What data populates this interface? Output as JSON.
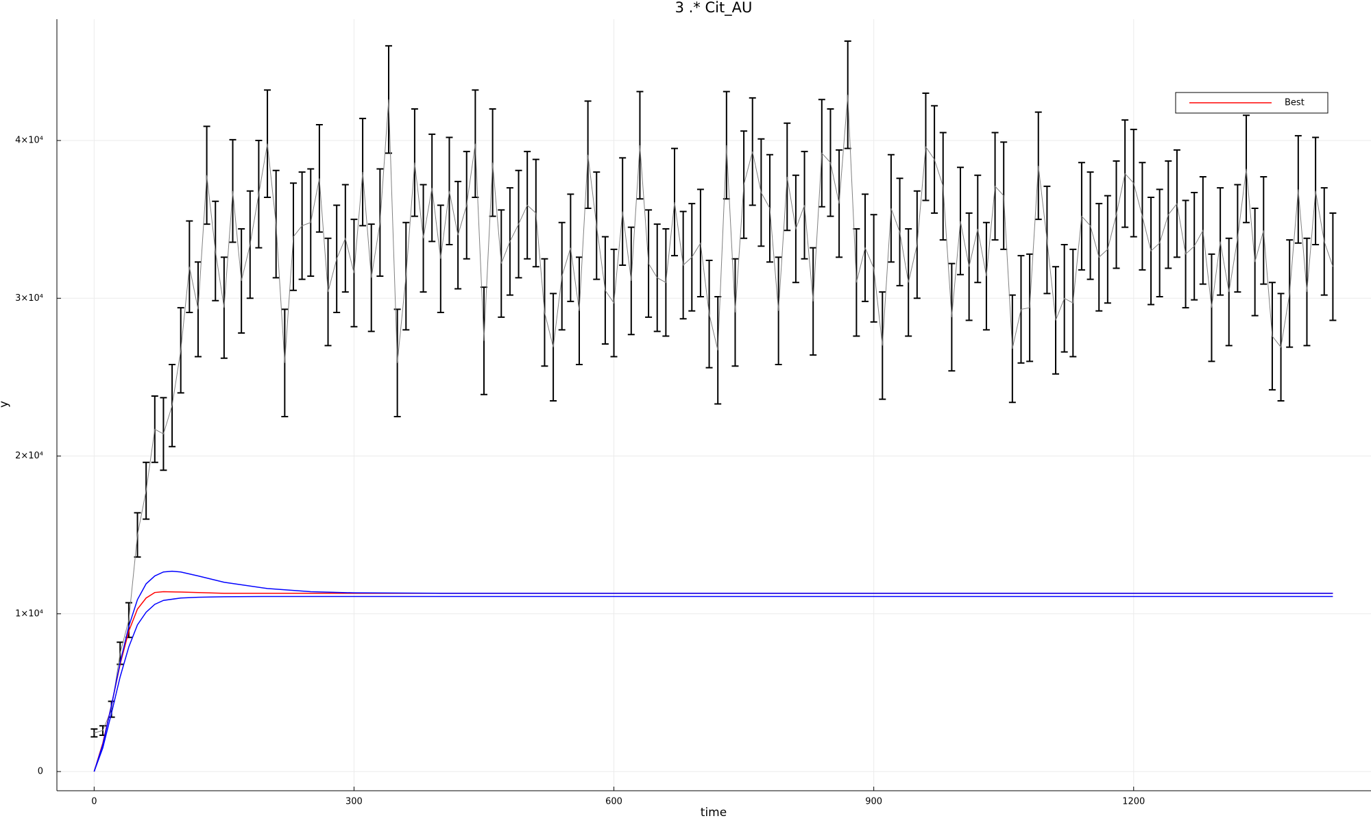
{
  "chart_data": {
    "type": "line",
    "title": "3  .*  Cit_AU",
    "x_label": "time",
    "y_label": "y",
    "xlim": [
      -43,
      1474
    ],
    "ylim": [
      -1216,
      47690
    ],
    "xticks": [
      0,
      300,
      600,
      900,
      1200
    ],
    "yticks": [
      0,
      {
        "value": 10000,
        "label": "1×10⁴"
      },
      {
        "value": 20000,
        "label": "2×10⁴"
      },
      {
        "value": 30000,
        "label": "3×10⁴"
      },
      {
        "value": 40000,
        "label": "4×10⁴"
      }
    ],
    "grid": true,
    "legend": "top-right",
    "series": [
      {
        "color": "#000000",
        "line_color": "#7f7f7f",
        "x": [
          0,
          10,
          20,
          30,
          40,
          50,
          60,
          70,
          80,
          90,
          100,
          110,
          120,
          130,
          140,
          150,
          160,
          170,
          180,
          190,
          200,
          210,
          220,
          230,
          240,
          250,
          260,
          270,
          280,
          290,
          300,
          310,
          320,
          330,
          340,
          350,
          360,
          370,
          380,
          390,
          400,
          410,
          420,
          430,
          440,
          450,
          460,
          470,
          480,
          490,
          500,
          510,
          520,
          530,
          540,
          550,
          560,
          570,
          580,
          590,
          600,
          610,
          620,
          630,
          640,
          650,
          660,
          670,
          680,
          690,
          700,
          710,
          720,
          730,
          740,
          750,
          760,
          770,
          780,
          790,
          800,
          810,
          820,
          830,
          840,
          850,
          860,
          870,
          880,
          890,
          900,
          910,
          920,
          930,
          940,
          950,
          960,
          970,
          980,
          990,
          1000,
          1010,
          1020,
          1030,
          1040,
          1050,
          1060,
          1070,
          1080,
          1090,
          1100,
          1110,
          1120,
          1130,
          1140,
          1150,
          1160,
          1170,
          1180,
          1190,
          1200,
          1210,
          1220,
          1230,
          1240,
          1250,
          1260,
          1270,
          1280,
          1290,
          1300,
          1310,
          1320,
          1330,
          1340,
          1350,
          1360,
          1370,
          1380,
          1390,
          1400,
          1410,
          1420,
          1430
        ],
        "values": [
          2450,
          2600,
          3950,
          7500,
          9600,
          15000,
          17800,
          21700,
          21400,
          23200,
          26700,
          32000,
          29300,
          37800,
          33000,
          29400,
          36800,
          31100,
          33400,
          36600,
          39800,
          34700,
          25900,
          33900,
          34600,
          34800,
          37600,
          30400,
          32500,
          33800,
          31600,
          38000,
          31300,
          34800,
          42600,
          25900,
          31400,
          38600,
          33800,
          37000,
          32500,
          36800,
          34000,
          35900,
          39800,
          27300,
          38600,
          32200,
          33600,
          34700,
          35900,
          35400,
          29100,
          26900,
          31400,
          33200,
          29200,
          39100,
          34600,
          30500,
          29700,
          35500,
          31100,
          39700,
          32200,
          31300,
          31000,
          36100,
          32100,
          32600,
          33500,
          29000,
          26700,
          39700,
          29100,
          37200,
          39300,
          36700,
          35700,
          29200,
          37700,
          34400,
          35900,
          29800,
          39200,
          38600,
          36000,
          42900,
          31000,
          33200,
          31900,
          27000,
          35700,
          34200,
          31000,
          33400,
          39600,
          38800,
          37100,
          28800,
          34900,
          32000,
          34400,
          31400,
          37100,
          36500,
          26800,
          29300,
          29400,
          38400,
          33700,
          28600,
          30000,
          29700,
          35200,
          34600,
          32600,
          33100,
          35300,
          37900,
          37300,
          35200,
          33000,
          33500,
          35300,
          36000,
          32800,
          33300,
          34300,
          29400,
          33600,
          30400,
          33800,
          38200,
          32300,
          34300,
          27600,
          26900,
          30300,
          36900,
          30400,
          36800,
          33600,
          32000
        ],
        "errors": [
          250,
          300,
          500,
          700,
          1100,
          1400,
          1800,
          2100,
          2300,
          2600,
          2700,
          2900,
          3000,
          3100,
          3150,
          3200,
          3250,
          3300,
          3400,
          3400,
          3400,
          3400,
          3400,
          3400,
          3400,
          3400,
          3400,
          3400,
          3400,
          3400,
          3400,
          3400,
          3400,
          3400,
          3400,
          3400,
          3400,
          3400,
          3400,
          3400,
          3400,
          3400,
          3400,
          3400,
          3400,
          3400,
          3400,
          3400,
          3400,
          3400,
          3400,
          3400,
          3400,
          3400,
          3400,
          3400,
          3400,
          3400,
          3400,
          3400,
          3400,
          3400,
          3400,
          3400,
          3400,
          3400,
          3400,
          3400,
          3400,
          3400,
          3400,
          3400,
          3400,
          3400,
          3400,
          3400,
          3400,
          3400,
          3400,
          3400,
          3400,
          3400,
          3400,
          3400,
          3400,
          3400,
          3400,
          3400,
          3400,
          3400,
          3400,
          3400,
          3400,
          3400,
          3400,
          3400,
          3400,
          3400,
          3400,
          3400,
          3400,
          3400,
          3400,
          3400,
          3400,
          3400,
          3400,
          3400,
          3400,
          3400,
          3400,
          3400,
          3400,
          3400,
          3400,
          3400,
          3400,
          3400,
          3400,
          3400,
          3400,
          3400,
          3400,
          3400,
          3400,
          3400,
          3400,
          3400,
          3400,
          3400,
          3400,
          3400,
          3400,
          3400,
          3400,
          3400,
          3400,
          3400,
          3400,
          3400,
          3400,
          3400,
          3400,
          3400
        ]
      },
      {
        "name": "Best",
        "color": "#ff0000",
        "x": [
          0,
          10,
          20,
          30,
          40,
          50,
          60,
          70,
          80,
          100,
          150,
          1430
        ],
        "values": [
          0,
          1800,
          4200,
          6800,
          8900,
          10300,
          11000,
          11350,
          11400,
          11380,
          11300,
          11300
        ]
      },
      {
        "color": "#0000ff",
        "x": [
          0,
          10,
          20,
          30,
          40,
          50,
          60,
          70,
          80,
          90,
          100,
          120,
          150,
          200,
          250,
          300,
          400,
          1430
        ],
        "values": [
          0,
          1700,
          4200,
          6900,
          9200,
          10900,
          11900,
          12400,
          12650,
          12700,
          12650,
          12400,
          12000,
          11600,
          11400,
          11330,
          11300,
          11300
        ]
      },
      {
        "color": "#0000ff",
        "x": [
          0,
          10,
          20,
          30,
          40,
          50,
          60,
          70,
          80,
          100,
          120,
          150,
          200,
          300,
          1430
        ],
        "values": [
          0,
          1500,
          3700,
          6000,
          7900,
          9300,
          10100,
          10600,
          10850,
          11000,
          11050,
          11080,
          11100,
          11100,
          11100
        ]
      }
    ]
  }
}
